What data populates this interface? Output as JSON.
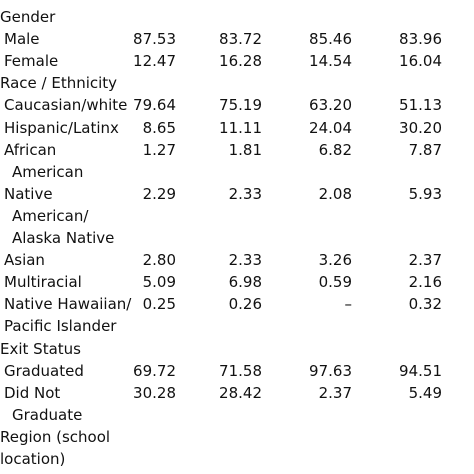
{
  "rows": [
    {
      "label": "Gender",
      "section": true,
      "v": []
    },
    {
      "label": "Male",
      "v": [
        "87.53",
        "83.72",
        "85.46",
        "83.96"
      ]
    },
    {
      "label": "Female",
      "v": [
        "12.47",
        "16.28",
        "14.54",
        "16.04"
      ]
    },
    {
      "label": "Race / Ethnicity",
      "section": true,
      "v": []
    },
    {
      "label": "Caucasian/white",
      "v": [
        "79.64",
        "75.19",
        "63.20",
        "51.13"
      ]
    },
    {
      "label": "Hispanic/Latinx",
      "v": [
        "8.65",
        "11.11",
        "24.04",
        "30.20"
      ]
    },
    {
      "label": "African",
      "v": [
        "1.27",
        "1.81",
        "6.82",
        "7.87"
      ]
    },
    {
      "label": "American",
      "indent": true,
      "v": []
    },
    {
      "label": "Native",
      "v": [
        "2.29",
        "2.33",
        "2.08",
        "5.93"
      ]
    },
    {
      "label": "American/",
      "indent": true,
      "v": []
    },
    {
      "label": "Alaska Native",
      "indent": true,
      "v": []
    },
    {
      "label": "Asian",
      "v": [
        "2.80",
        "2.33",
        "3.26",
        "2.37"
      ]
    },
    {
      "label": "Multiracial",
      "v": [
        "5.09",
        "6.98",
        "0.59",
        "2.16"
      ]
    },
    {
      "label": "Native Hawaiian/",
      "v": [
        "0.25",
        "0.26",
        "–",
        "0.32"
      ]
    },
    {
      "label": "Pacific Islander",
      "v": []
    },
    {
      "label": "Exit Status",
      "section": true,
      "v": []
    },
    {
      "label": "Graduated",
      "v": [
        "69.72",
        "71.58",
        "97.63",
        "94.51"
      ]
    },
    {
      "label": "Did Not",
      "v": [
        "30.28",
        "28.42",
        "2.37",
        "5.49"
      ]
    },
    {
      "label": "Graduate",
      "indent": true,
      "v": []
    },
    {
      "label": "Region (school",
      "section": true,
      "v": []
    },
    {
      "label": "location)",
      "section": true,
      "v": []
    }
  ]
}
